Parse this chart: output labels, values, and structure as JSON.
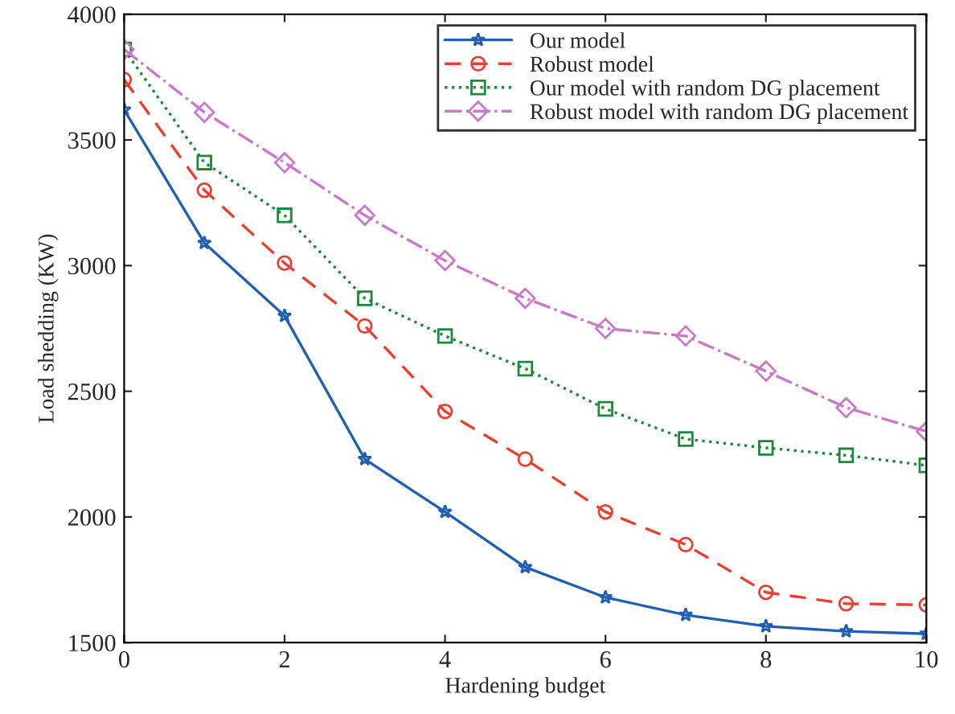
{
  "chart_data": {
    "type": "line",
    "xlabel": "Hardening budget",
    "ylabel": "Load shedding (KW)",
    "x": [
      0,
      1,
      2,
      3,
      4,
      5,
      6,
      7,
      8,
      9,
      10
    ],
    "series": [
      {
        "name": "Our model",
        "color": "#1f5fb4",
        "marker": "star",
        "line_style": "solid",
        "values": [
          3620,
          3090,
          2800,
          2230,
          2020,
          1800,
          1680,
          1610,
          1565,
          1545,
          1535
        ]
      },
      {
        "name": "Robust model",
        "color": "#f03c2e",
        "marker": "circle",
        "line_style": "dashed",
        "values": [
          3740,
          3300,
          3010,
          2760,
          2420,
          2230,
          2020,
          1890,
          1700,
          1655,
          1650
        ]
      },
      {
        "name": "Our model with random DG placement",
        "color": "#1a8a3a",
        "marker": "square",
        "line_style": "dotted",
        "values": [
          3860,
          3410,
          3200,
          2870,
          2720,
          2590,
          2430,
          2310,
          2275,
          2245,
          2205
        ]
      },
      {
        "name": "Robust model with random DG placement",
        "color": "#cc77cc",
        "marker": "diamond",
        "line_style": "dashdot",
        "values": [
          3860,
          3610,
          3410,
          3200,
          3020,
          2870,
          2750,
          2720,
          2580,
          2435,
          2340
        ]
      }
    ],
    "xlim": [
      0,
      10
    ],
    "xticks": [
      0,
      2,
      4,
      6,
      8,
      10
    ],
    "ylim": [
      1500,
      4000
    ],
    "yticks": [
      1500,
      2000,
      2500,
      3000,
      3500,
      4000
    ],
    "grid": false,
    "legend": "top right"
  }
}
